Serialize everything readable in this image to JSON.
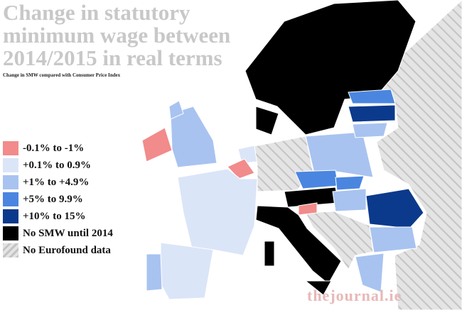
{
  "header": {
    "title": "Change in statutory minimum wage between 2014/2015 in real terms",
    "subtitle": "Change in SMW compared with Consumer Price Index"
  },
  "legend": [
    {
      "label": "-0.1% to -1%",
      "color": "#f28b8b"
    },
    {
      "label": "+0.1% to 0.9%",
      "color": "#dbe5f8"
    },
    {
      "label": "+1% to +4.9%",
      "color": "#a8c3f0"
    },
    {
      "label": "+5% to 9.9%",
      "color": "#4a86e0"
    },
    {
      "label": "+10% to 15%",
      "color": "#0b3a8c"
    },
    {
      "label": "No SMW until 2014",
      "color": "#000000"
    },
    {
      "label": "No Eurofound data",
      "color": "#d9d9d9",
      "hatched": true
    }
  ],
  "non_eu_color": "#d9d9d9",
  "watermark": "thejournal.ie"
}
